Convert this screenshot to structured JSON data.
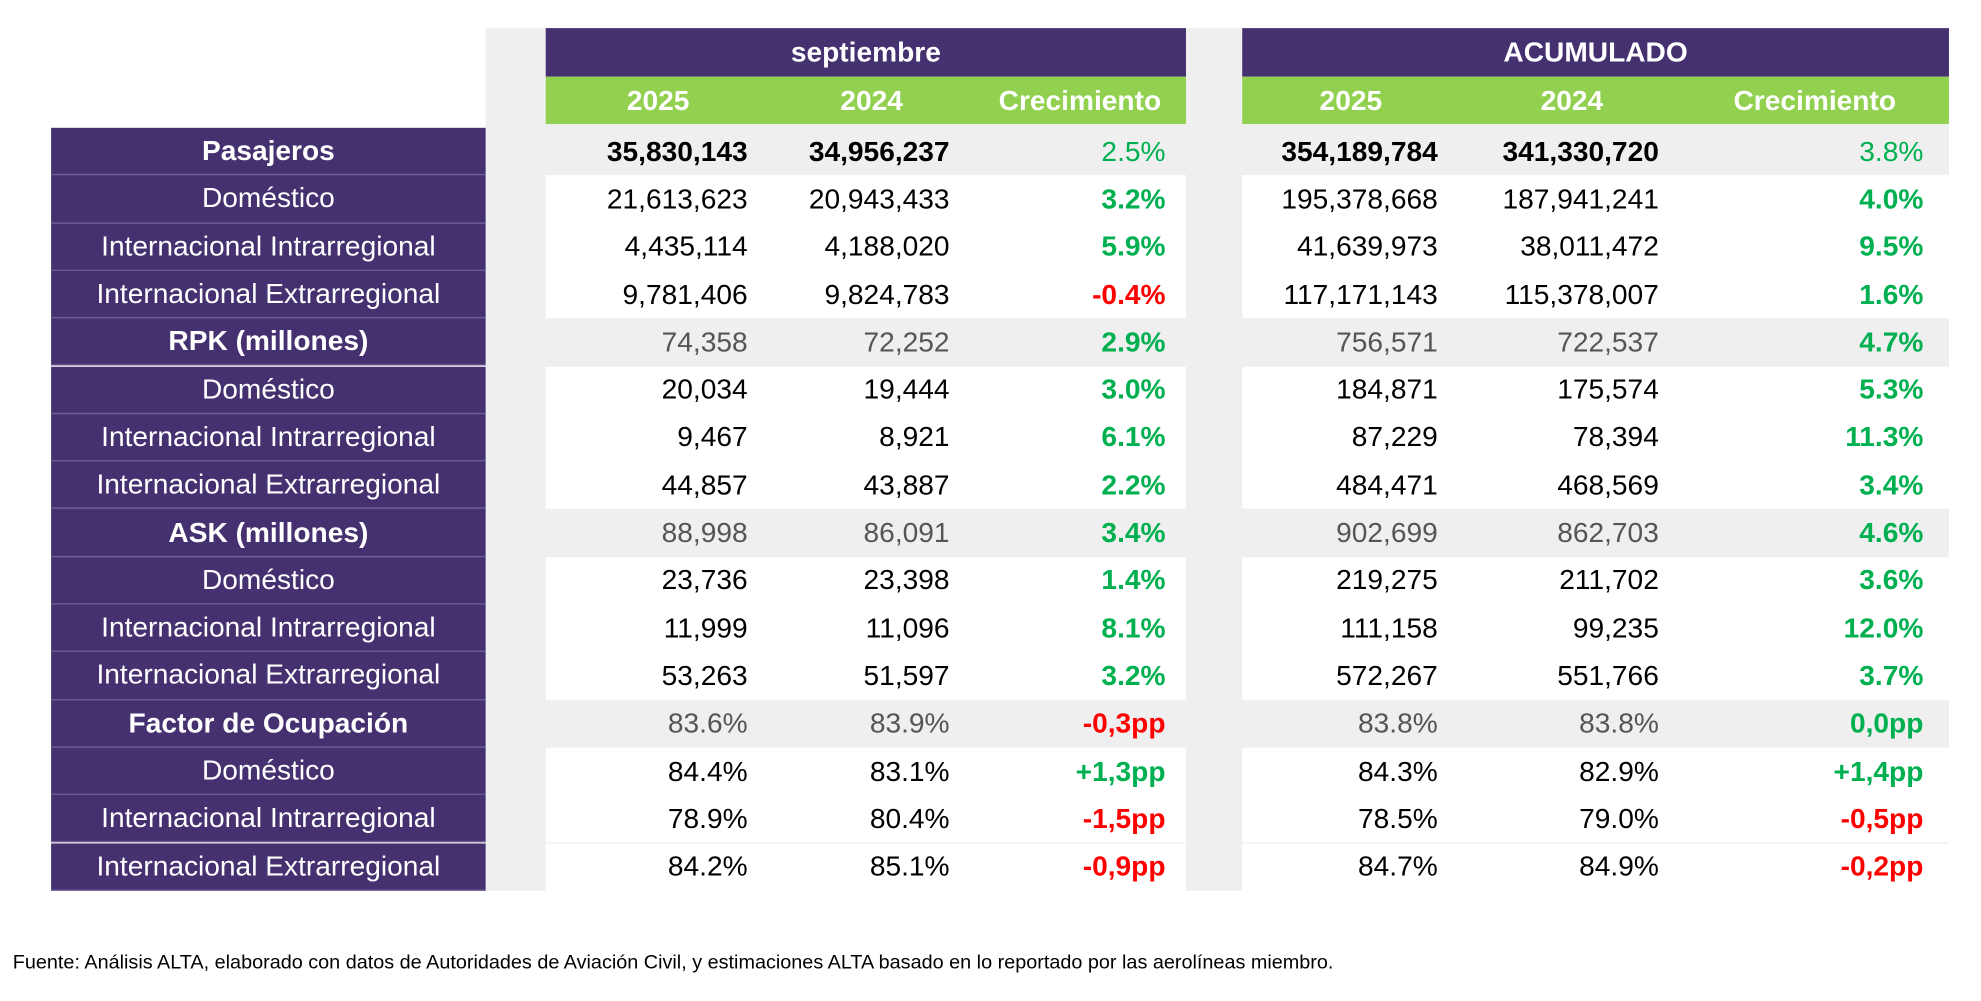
{
  "header": {
    "groups": [
      "septiembre",
      "ACUMULADO"
    ],
    "columns": [
      "2025",
      "2024",
      "Crecimiento",
      "2025",
      "2024",
      "Crecimiento"
    ]
  },
  "table": {
    "rows": [
      [
        "Pasajeros",
        "35,830,143",
        "34,956,237",
        "2.5%",
        "354,189,784",
        "341,330,720",
        "3.8%"
      ],
      [
        "Doméstico",
        "21,613,623",
        "20,943,433",
        "3.2%",
        "195,378,668",
        "187,941,241",
        "4.0%"
      ],
      [
        "Internacional Intrarregional",
        "4,435,114",
        "4,188,020",
        "5.9%",
        "41,639,973",
        "38,011,472",
        "9.5%"
      ],
      [
        "Internacional Extrarregional",
        "9,781,406",
        "9,824,783",
        "-0.4%",
        "117,171,143",
        "115,378,007",
        "1.6%"
      ],
      [
        "RPK (millones)",
        "74,358",
        "72,252",
        "2.9%",
        "756,571",
        "722,537",
        "4.7%"
      ],
      [
        "Doméstico",
        "20,034",
        "19,444",
        "3.0%",
        "184,871",
        "175,574",
        "5.3%"
      ],
      [
        "Internacional Intrarregional",
        "9,467",
        "8,921",
        "6.1%",
        "87,229",
        "78,394",
        "11.3%"
      ],
      [
        "Internacional Extrarregional",
        "44,857",
        "43,887",
        "2.2%",
        "484,471",
        "468,569",
        "3.4%"
      ],
      [
        "ASK (millones)",
        "88,998",
        "86,091",
        "3.4%",
        "902,699",
        "862,703",
        "4.6%"
      ],
      [
        "Doméstico",
        "23,736",
        "23,398",
        "1.4%",
        "219,275",
        "211,702",
        "3.6%"
      ],
      [
        "Internacional Intrarregional",
        "11,999",
        "11,096",
        "8.1%",
        "111,158",
        "99,235",
        "12.0%"
      ],
      [
        "Internacional Extrarregional",
        "53,263",
        "51,597",
        "3.2%",
        "572,267",
        "551,766",
        "3.7%"
      ],
      [
        "Factor de Ocupación",
        "83.6%",
        "83.9%",
        "-0,3pp",
        "83.8%",
        "83.8%",
        "0,0pp"
      ],
      [
        "Doméstico",
        "84.4%",
        "83.1%",
        "+1,3pp",
        "84.3%",
        "82.9%",
        "+1,4pp"
      ],
      [
        "Internacional Intrarregional",
        "78.9%",
        "80.4%",
        "-1,5pp",
        "78.5%",
        "79.0%",
        "-0,5pp"
      ],
      [
        "Internacional Extrarregional",
        "84.2%",
        "85.1%",
        "-0,9pp",
        "84.7%",
        "84.9%",
        "-0,2pp"
      ]
    ]
  },
  "footnote": "Fuente: Análisis ALTA, elaborado con datos de Autoridades de Aviación Civil,  y estimaciones ALTA basado en lo reportado por las aerolíneas miembro."
}
